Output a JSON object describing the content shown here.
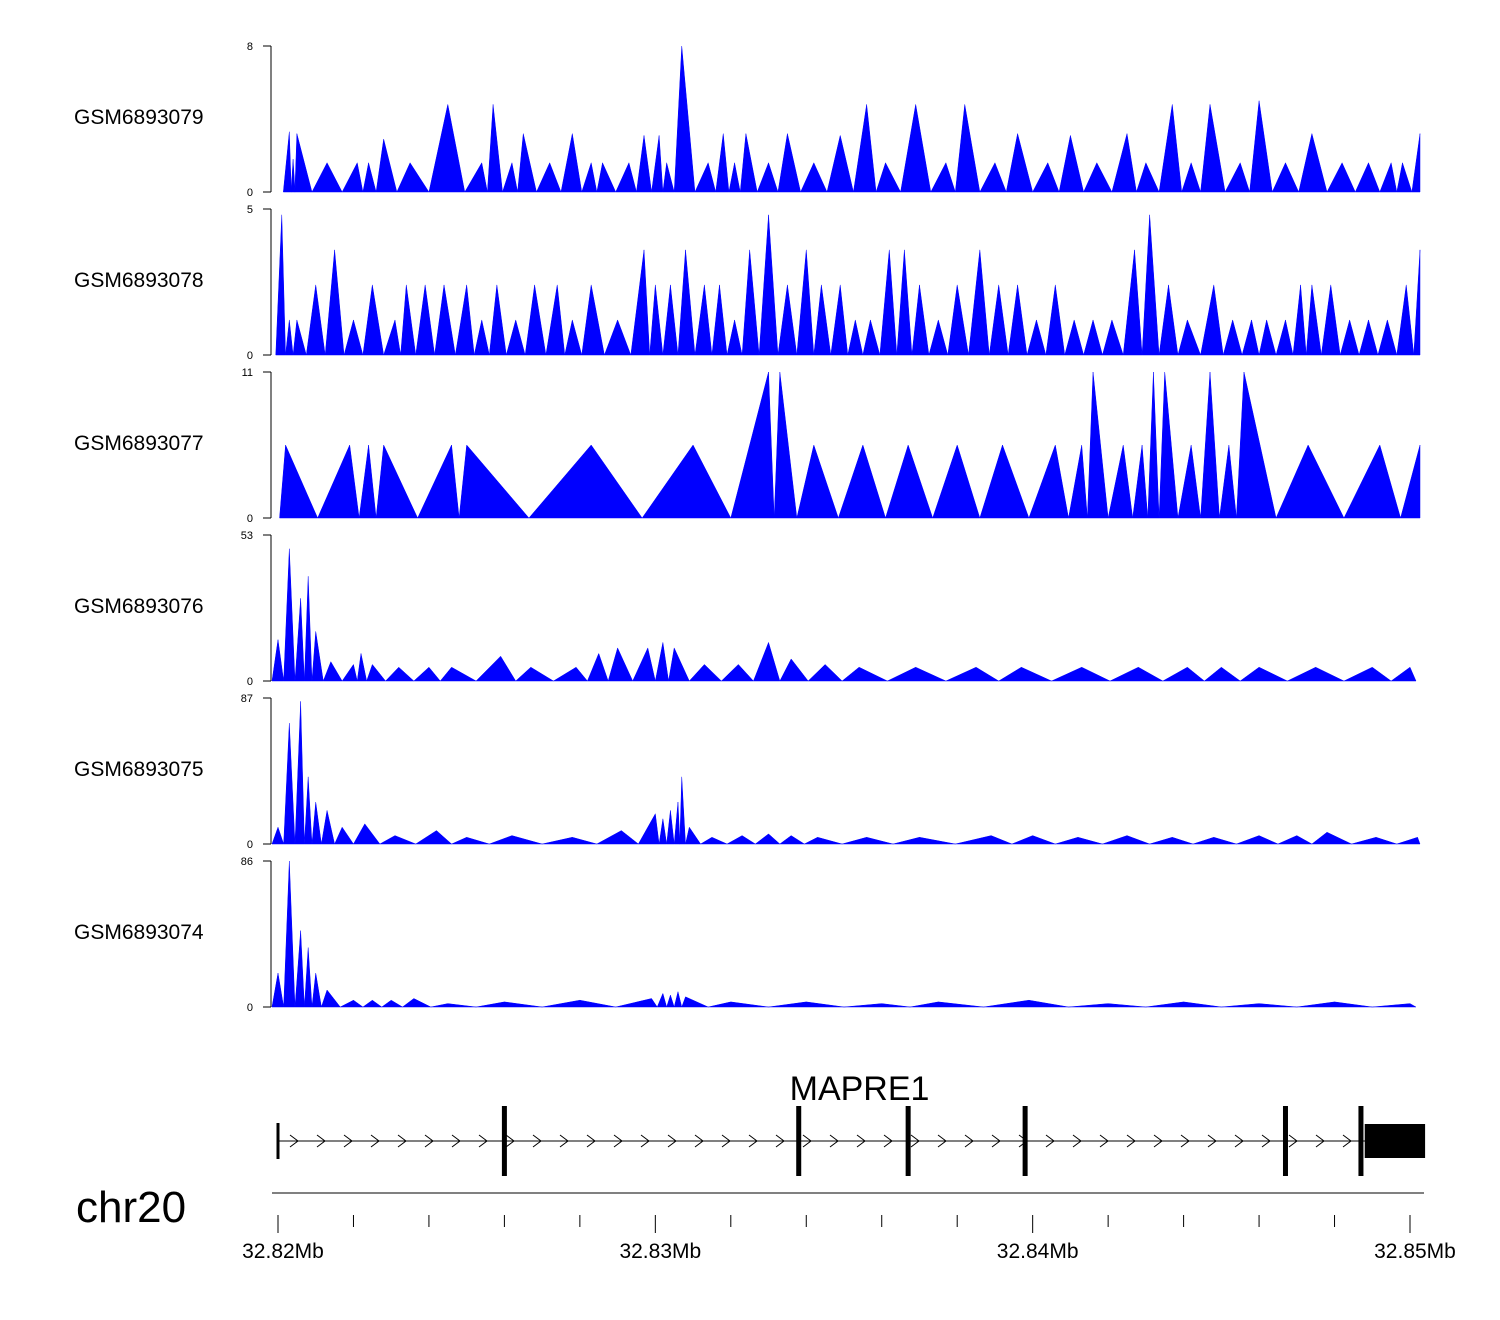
{
  "chart_data": {
    "type": "area",
    "region": {
      "chromosome": "chr20",
      "start_mb": 32.8199,
      "end_mb": 32.8504
    },
    "fill_color": "#0000ff",
    "tracks": [
      {
        "name": "GSM6893079",
        "ylim": [
          0,
          8
        ],
        "ymax_label": "8",
        "ymin_label": "0",
        "peaks": [
          [
            32.8203,
            3.3
          ],
          [
            32.8204,
            1.8
          ],
          [
            32.8205,
            3.2
          ],
          [
            32.8213,
            1.6
          ],
          [
            32.8221,
            1.6
          ],
          [
            32.8224,
            1.6
          ],
          [
            32.8228,
            2.9
          ],
          [
            32.8235,
            1.6
          ],
          [
            32.8245,
            4.8
          ],
          [
            32.8254,
            1.6
          ],
          [
            32.8257,
            4.8
          ],
          [
            32.8262,
            1.6
          ],
          [
            32.8265,
            3.2
          ],
          [
            32.8272,
            1.6
          ],
          [
            32.8278,
            3.2
          ],
          [
            32.8283,
            1.6
          ],
          [
            32.8286,
            1.6
          ],
          [
            32.8293,
            1.6
          ],
          [
            32.8297,
            3.1
          ],
          [
            32.8301,
            3.1
          ],
          [
            32.8303,
            1.6
          ],
          [
            32.8307,
            8.0
          ],
          [
            32.8314,
            1.6
          ],
          [
            32.8318,
            3.2
          ],
          [
            32.8321,
            1.6
          ],
          [
            32.8324,
            3.2
          ],
          [
            32.833,
            1.6
          ],
          [
            32.8335,
            3.2
          ],
          [
            32.8342,
            1.6
          ],
          [
            32.8349,
            3.1
          ],
          [
            32.8356,
            4.8
          ],
          [
            32.8361,
            1.6
          ],
          [
            32.8369,
            4.8
          ],
          [
            32.8377,
            1.6
          ],
          [
            32.8382,
            4.8
          ],
          [
            32.839,
            1.6
          ],
          [
            32.8396,
            3.2
          ],
          [
            32.8404,
            1.6
          ],
          [
            32.841,
            3.1
          ],
          [
            32.8417,
            1.6
          ],
          [
            32.8425,
            3.2
          ],
          [
            32.843,
            1.6
          ],
          [
            32.8437,
            4.8
          ],
          [
            32.8442,
            1.6
          ],
          [
            32.8447,
            4.8
          ],
          [
            32.8455,
            1.6
          ],
          [
            32.846,
            5.0
          ],
          [
            32.8467,
            1.6
          ],
          [
            32.8474,
            3.2
          ],
          [
            32.8482,
            1.6
          ],
          [
            32.8489,
            1.6
          ],
          [
            32.8495,
            1.6
          ],
          [
            32.8498,
            1.6
          ],
          [
            32.8503,
            3.2
          ]
        ]
      },
      {
        "name": "GSM6893078",
        "ylim": [
          0,
          5
        ],
        "ymax_label": "5",
        "ymin_label": "0",
        "peaks": [
          [
            32.8201,
            4.8
          ],
          [
            32.8203,
            1.2
          ],
          [
            32.8205,
            1.2
          ],
          [
            32.821,
            2.4
          ],
          [
            32.8215,
            3.6
          ],
          [
            32.822,
            1.2
          ],
          [
            32.8225,
            2.4
          ],
          [
            32.8231,
            1.2
          ],
          [
            32.8234,
            2.4
          ],
          [
            32.8239,
            2.4
          ],
          [
            32.8244,
            2.4
          ],
          [
            32.825,
            2.4
          ],
          [
            32.8254,
            1.2
          ],
          [
            32.8258,
            2.4
          ],
          [
            32.8263,
            1.2
          ],
          [
            32.8268,
            2.4
          ],
          [
            32.8274,
            2.4
          ],
          [
            32.8278,
            1.2
          ],
          [
            32.8283,
            2.4
          ],
          [
            32.829,
            1.2
          ],
          [
            32.8297,
            3.6
          ],
          [
            32.83,
            2.4
          ],
          [
            32.8304,
            2.4
          ],
          [
            32.8308,
            3.6
          ],
          [
            32.8313,
            2.4
          ],
          [
            32.8317,
            2.4
          ],
          [
            32.8321,
            1.2
          ],
          [
            32.8325,
            3.6
          ],
          [
            32.833,
            4.8
          ],
          [
            32.8335,
            2.4
          ],
          [
            32.834,
            3.6
          ],
          [
            32.8344,
            2.4
          ],
          [
            32.8349,
            2.4
          ],
          [
            32.8353,
            1.2
          ],
          [
            32.8357,
            1.2
          ],
          [
            32.8362,
            3.6
          ],
          [
            32.8366,
            3.6
          ],
          [
            32.837,
            2.4
          ],
          [
            32.8375,
            1.2
          ],
          [
            32.838,
            2.4
          ],
          [
            32.8386,
            3.6
          ],
          [
            32.8391,
            2.4
          ],
          [
            32.8396,
            2.4
          ],
          [
            32.8401,
            1.2
          ],
          [
            32.8406,
            2.4
          ],
          [
            32.8411,
            1.2
          ],
          [
            32.8416,
            1.2
          ],
          [
            32.8421,
            1.2
          ],
          [
            32.8427,
            3.6
          ],
          [
            32.8431,
            4.8
          ],
          [
            32.8436,
            2.4
          ],
          [
            32.8441,
            1.2
          ],
          [
            32.8448,
            2.4
          ],
          [
            32.8453,
            1.2
          ],
          [
            32.8458,
            1.2
          ],
          [
            32.8462,
            1.2
          ],
          [
            32.8467,
            1.2
          ],
          [
            32.8471,
            2.4
          ],
          [
            32.8474,
            2.4
          ],
          [
            32.8479,
            2.4
          ],
          [
            32.8484,
            1.2
          ],
          [
            32.8489,
            1.2
          ],
          [
            32.8494,
            1.2
          ],
          [
            32.8499,
            2.4
          ],
          [
            32.8503,
            3.6
          ]
        ]
      },
      {
        "name": "GSM6893077",
        "ylim": [
          0,
          11
        ],
        "ymax_label": "11",
        "ymin_label": "0",
        "peaks": [
          [
            32.8202,
            5.5
          ],
          [
            32.8219,
            5.5
          ],
          [
            32.8224,
            5.5
          ],
          [
            32.8228,
            5.5
          ],
          [
            32.8246,
            5.5
          ],
          [
            32.825,
            5.5
          ],
          [
            32.8283,
            5.5
          ],
          [
            32.831,
            5.5
          ],
          [
            32.833,
            11.0
          ],
          [
            32.8333,
            11.0
          ],
          [
            32.8342,
            5.5
          ],
          [
            32.8355,
            5.5
          ],
          [
            32.8367,
            5.5
          ],
          [
            32.838,
            5.5
          ],
          [
            32.8392,
            5.5
          ],
          [
            32.8406,
            5.5
          ],
          [
            32.8413,
            5.5
          ],
          [
            32.8416,
            11.0
          ],
          [
            32.8424,
            5.5
          ],
          [
            32.8429,
            5.5
          ],
          [
            32.8432,
            11.0
          ],
          [
            32.8435,
            11.0
          ],
          [
            32.8442,
            5.5
          ],
          [
            32.8447,
            11.0
          ],
          [
            32.8452,
            5.5
          ],
          [
            32.8456,
            11.0
          ],
          [
            32.8473,
            5.5
          ],
          [
            32.8492,
            5.5
          ],
          [
            32.8503,
            5.5
          ]
        ]
      },
      {
        "name": "GSM6893076",
        "ylim": [
          0,
          53
        ],
        "ymax_label": "53",
        "ymin_label": "0",
        "peaks": [
          [
            32.82,
            15.0
          ],
          [
            32.8203,
            48.0
          ],
          [
            32.8206,
            30.0
          ],
          [
            32.8208,
            38.0
          ],
          [
            32.821,
            18.0
          ],
          [
            32.8214,
            7.0
          ],
          [
            32.822,
            6.0
          ],
          [
            32.8222,
            10.0
          ],
          [
            32.8225,
            6.0
          ],
          [
            32.8232,
            5.0
          ],
          [
            32.824,
            5.0
          ],
          [
            32.8246,
            5.0
          ],
          [
            32.8259,
            9.0
          ],
          [
            32.8267,
            5.0
          ],
          [
            32.8279,
            5.0
          ],
          [
            32.8285,
            10.0
          ],
          [
            32.829,
            12.0
          ],
          [
            32.8298,
            12.0
          ],
          [
            32.8302,
            14.0
          ],
          [
            32.8305,
            12.0
          ],
          [
            32.8313,
            6.0
          ],
          [
            32.8322,
            6.0
          ],
          [
            32.833,
            14.0
          ],
          [
            32.8336,
            8.0
          ],
          [
            32.8345,
            6.0
          ],
          [
            32.8354,
            5.0
          ],
          [
            32.8369,
            5.0
          ],
          [
            32.8385,
            5.0
          ],
          [
            32.8397,
            5.0
          ],
          [
            32.8413,
            5.0
          ],
          [
            32.8428,
            5.0
          ],
          [
            32.8441,
            5.0
          ],
          [
            32.845,
            5.0
          ],
          [
            32.846,
            5.0
          ],
          [
            32.8475,
            5.0
          ],
          [
            32.849,
            5.0
          ],
          [
            32.85,
            5.0
          ]
        ]
      },
      {
        "name": "GSM6893075",
        "ylim": [
          0,
          87
        ],
        "ymax_label": "87",
        "ymin_label": "0",
        "peaks": [
          [
            32.82,
            10.0
          ],
          [
            32.8203,
            72.0
          ],
          [
            32.8206,
            85.0
          ],
          [
            32.8208,
            40.0
          ],
          [
            32.821,
            25.0
          ],
          [
            32.8213,
            20.0
          ],
          [
            32.8217,
            10.0
          ],
          [
            32.8223,
            12.0
          ],
          [
            32.8231,
            5.0
          ],
          [
            32.8242,
            8.0
          ],
          [
            32.825,
            4.0
          ],
          [
            32.8262,
            5.0
          ],
          [
            32.8278,
            4.0
          ],
          [
            32.8291,
            8.0
          ],
          [
            32.83,
            18.0
          ],
          [
            32.8302,
            15.0
          ],
          [
            32.8304,
            20.0
          ],
          [
            32.8306,
            25.0
          ],
          [
            32.8307,
            40.0
          ],
          [
            32.8309,
            10.0
          ],
          [
            32.8315,
            4.0
          ],
          [
            32.8323,
            5.0
          ],
          [
            32.833,
            6.0
          ],
          [
            32.8336,
            5.0
          ],
          [
            32.8343,
            4.0
          ],
          [
            32.8356,
            4.0
          ],
          [
            32.837,
            4.0
          ],
          [
            32.8389,
            5.0
          ],
          [
            32.84,
            5.0
          ],
          [
            32.8412,
            4.0
          ],
          [
            32.8425,
            5.0
          ],
          [
            32.8437,
            4.0
          ],
          [
            32.8448,
            4.0
          ],
          [
            32.846,
            5.0
          ],
          [
            32.847,
            5.0
          ],
          [
            32.8478,
            7.0
          ],
          [
            32.8491,
            4.0
          ],
          [
            32.8502,
            4.0
          ]
        ]
      },
      {
        "name": "GSM6893074",
        "ylim": [
          0,
          86
        ],
        "ymax_label": "86",
        "ymin_label": "0",
        "peaks": [
          [
            32.82,
            20.0
          ],
          [
            32.8203,
            86.0
          ],
          [
            32.8206,
            45.0
          ],
          [
            32.8208,
            35.0
          ],
          [
            32.821,
            20.0
          ],
          [
            32.8213,
            10.0
          ],
          [
            32.822,
            4.0
          ],
          [
            32.8225,
            4.0
          ],
          [
            32.823,
            4.0
          ],
          [
            32.8236,
            5.0
          ],
          [
            32.8245,
            2.0
          ],
          [
            32.826,
            3.0
          ],
          [
            32.828,
            4.0
          ],
          [
            32.8299,
            5.0
          ],
          [
            32.8302,
            8.0
          ],
          [
            32.8304,
            7.0
          ],
          [
            32.8306,
            9.0
          ],
          [
            32.8308,
            6.0
          ],
          [
            32.832,
            3.0
          ],
          [
            32.834,
            3.0
          ],
          [
            32.836,
            2.0
          ],
          [
            32.8375,
            3.0
          ],
          [
            32.8399,
            4.0
          ],
          [
            32.842,
            2.0
          ],
          [
            32.844,
            3.0
          ],
          [
            32.846,
            2.0
          ],
          [
            32.848,
            3.0
          ],
          [
            32.85,
            2.0
          ]
        ]
      }
    ],
    "gene": {
      "name": "MAPRE1",
      "strand": "+",
      "exons_mb": [
        32.82,
        32.826,
        32.8338,
        32.8367,
        32.8398,
        32.8467,
        32.8487
      ],
      "utr_mb": [
        32.8488,
        32.8504
      ]
    },
    "axis": {
      "chromosome_label": "chr20",
      "ticks_mb": [
        32.82,
        32.822,
        32.824,
        32.826,
        32.828,
        32.83,
        32.832,
        32.834,
        32.836,
        32.838,
        32.84,
        32.842,
        32.844,
        32.846,
        32.848,
        32.85
      ],
      "tick_labels": [
        {
          "mb": 32.82,
          "label": "32.82Mb"
        },
        {
          "mb": 32.83,
          "label": "32.83Mb"
        },
        {
          "mb": 32.84,
          "label": "32.84Mb"
        },
        {
          "mb": 32.85,
          "label": "32.85Mb"
        }
      ]
    }
  }
}
